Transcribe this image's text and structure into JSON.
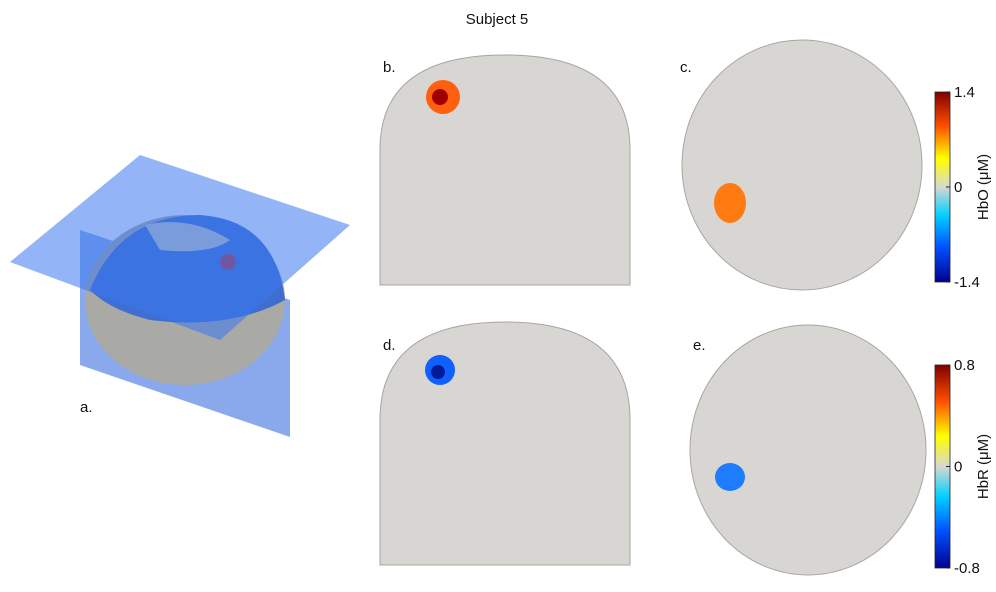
{
  "title": "Subject 5",
  "panels": {
    "a": "a.",
    "b": "b.",
    "c": "c.",
    "d": "d.",
    "e": "e."
  },
  "colorbars": [
    {
      "label": "HbO (μM)",
      "lim": [
        -1.4,
        1.4
      ],
      "ticks": [
        1.4,
        0,
        -1.4
      ]
    },
    {
      "label": "HbR (μM)",
      "lim": [
        -0.8,
        0.8
      ],
      "ticks": [
        0.8,
        0,
        -0.8
      ]
    }
  ]
}
